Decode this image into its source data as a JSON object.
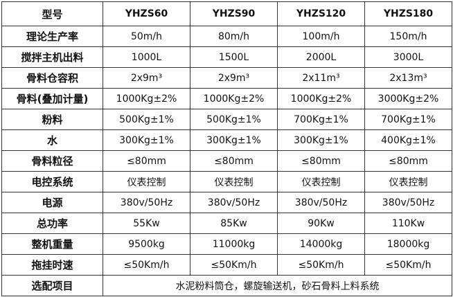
{
  "table": {
    "header": [
      "型号",
      "YHZS60",
      "YHZS90",
      "YHZS120",
      "YHZS180"
    ],
    "rows": [
      {
        "label": "理论生产率",
        "values": [
          "50m/h",
          "80m/h",
          "100m/h",
          "150m/h"
        ]
      },
      {
        "label": "搅拌主机出料",
        "values": [
          "1000L",
          "1500L",
          "2000L",
          "3000L"
        ]
      },
      {
        "label": "骨料仓容积",
        "values": [
          "2x9m³",
          "2x9m³",
          "2x11m³",
          "2x13m³"
        ]
      },
      {
        "label": "骨料(叠加计量)",
        "values": [
          "1000Kg±2%",
          "1000Kg±2%",
          "1000Kg±2%",
          "3000Kg±2%"
        ]
      },
      {
        "label": "粉料",
        "values": [
          "500Kg±1%",
          "500Kg±1%",
          "700Kg±1%",
          "700Kg±1%"
        ]
      },
      {
        "label": "水",
        "values": [
          "300Kg±1%",
          "300Kg±1%",
          "300Kg±1%",
          "400Kg±1%"
        ]
      },
      {
        "label": "骨料粒径",
        "values": [
          "≤80mm",
          "≤80mm",
          "≤80mm",
          "≤80mm"
        ]
      },
      {
        "label": "电控系统",
        "values": [
          "仪表控制",
          "仪表控制",
          "仪表控制",
          "仪表控制"
        ]
      },
      {
        "label": "电源",
        "values": [
          "380v/50Hz",
          "380v/50Hz",
          "380v/50Hz",
          "380v/50Hz"
        ]
      },
      {
        "label": "总功率",
        "values": [
          "55Kw",
          "85Kw",
          "90Kw",
          "110Kw"
        ]
      },
      {
        "label": "整机重量",
        "values": [
          "9500kg",
          "11000kg",
          "14000kg",
          "18000kg"
        ]
      },
      {
        "label": "拖挂时速",
        "values": [
          "≤50Km/h",
          "≤50Km/h",
          "≤50Km/h",
          "≤50Km/h"
        ]
      }
    ],
    "options": {
      "label": "选配项目",
      "value": "水泥粉料筒仓，螺旋输送机，砂石骨料上料系统"
    }
  }
}
